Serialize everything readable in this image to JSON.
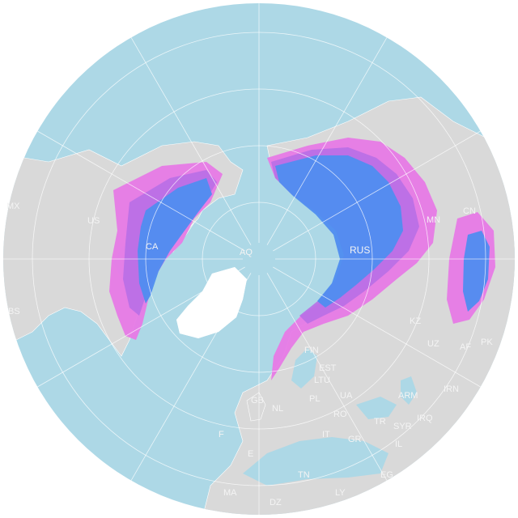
{
  "map": {
    "projection": "north-polar azimuthal",
    "colors": {
      "ocean": "#add8e6",
      "land": "#d9d9d9",
      "graticule": "#ffffff",
      "borders": "#ffffff",
      "range_outer": "#e77ae6",
      "range_mid": "#b86fe6",
      "range_inner": "#4f8df0",
      "greenland": "#ffffff"
    },
    "labels": {
      "mx": "MX",
      "us": "US",
      "ca": "CA",
      "bs": "BS",
      "aq": "AQ",
      "rus": "RUS",
      "mn": "MN",
      "cn": "CN",
      "kz": "KZ",
      "uz": "UZ",
      "af": "AF",
      "pk": "PK",
      "irn": "IRN",
      "irq": "IRQ",
      "syr": "SYR",
      "tr": "TR",
      "arm": "ARM",
      "ua": "UA",
      "pl": "PL",
      "fin": "FIN",
      "est": "EST",
      "ltu": "LTU",
      "gb": "GB",
      "nl": "NL",
      "f": "F",
      "e": "E",
      "ma": "MA",
      "dz": "DZ",
      "tn": "TN",
      "ly": "LY",
      "eg": "EG",
      "il": "IL",
      "it": "IT",
      "ro": "RO",
      "gr": "GR"
    }
  }
}
